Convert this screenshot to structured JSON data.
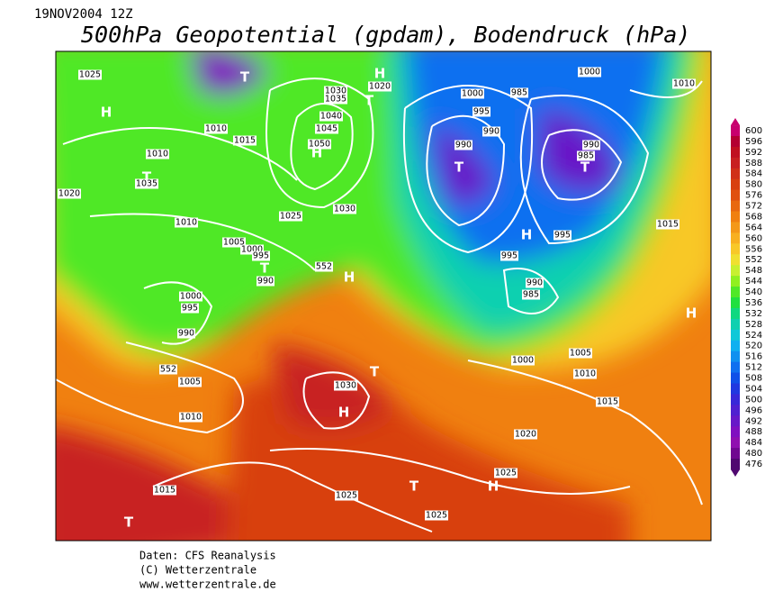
{
  "header": {
    "date": "19NOV2004 12Z",
    "title": "500hPa Geopotential (gpdam), Bodendruck (hPa)"
  },
  "legend": {
    "labels": [
      600,
      596,
      592,
      588,
      584,
      580,
      576,
      572,
      568,
      564,
      560,
      556,
      552,
      548,
      544,
      540,
      536,
      532,
      528,
      524,
      520,
      516,
      512,
      508,
      504,
      500,
      496,
      492,
      488,
      484,
      480,
      476
    ],
    "colors": [
      "#c8006e",
      "#b40032",
      "#c01020",
      "#c82020",
      "#d03018",
      "#d84010",
      "#e05010",
      "#e86810",
      "#f08010",
      "#f49818",
      "#f8b020",
      "#f8c828",
      "#f0e030",
      "#c8f030",
      "#90f020",
      "#50e828",
      "#20e040",
      "#10d880",
      "#10d0b0",
      "#10c8d8",
      "#10b0f0",
      "#1090f0",
      "#1070f0",
      "#1050e8",
      "#2038e0",
      "#3828d8",
      "#5020d0",
      "#6818c8",
      "#8010c0",
      "#9010b0",
      "#700890",
      "#500870"
    ]
  },
  "map_labels": [
    "T",
    "H",
    "1020",
    "T",
    "1030",
    "1035",
    "1040",
    "1045",
    "1050",
    "H",
    "1025",
    "1030",
    "1025",
    "H",
    "1010",
    "1015",
    "1010",
    "T",
    "1035",
    "1020",
    "1010",
    "1005",
    "1000",
    "995",
    "T",
    "990",
    "H",
    "552",
    "1000",
    "995",
    "990",
    "552",
    "1005",
    "1010",
    "1030",
    "H",
    "T",
    "1020",
    "1025",
    "H",
    "T",
    "1025",
    "1015",
    "T",
    "1025",
    "1000",
    "985",
    "1000",
    "1010",
    "995",
    "990",
    "990",
    "T",
    "990",
    "985",
    "T",
    "1015",
    "995",
    "H",
    "995",
    "990",
    "985",
    "H",
    "1005",
    "1000",
    "1010",
    "1015"
  ],
  "footer": [
    "Daten: CFS Reanalysis",
    "(C) Wetterzentrale",
    "www.wetterzentrale.de"
  ]
}
